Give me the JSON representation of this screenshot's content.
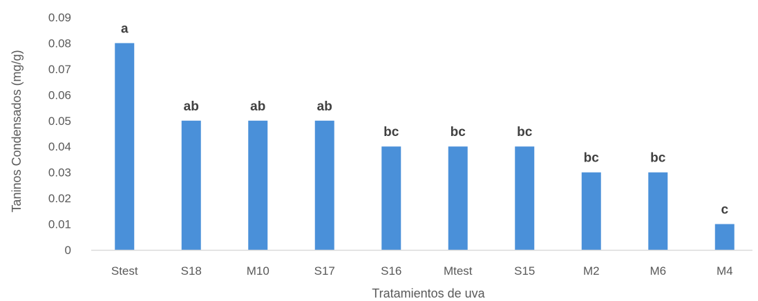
{
  "chart_data": {
    "type": "bar",
    "title": "",
    "xlabel": "Tratamientos de uva",
    "ylabel": "Taninos Condensados (mg/g)",
    "ylim": [
      0,
      0.09
    ],
    "yticks": [
      "0",
      "0.01",
      "0.02",
      "0.03",
      "0.04",
      "0.05",
      "0.06",
      "0.07",
      "0.08",
      "0.09"
    ],
    "categories": [
      "Stest",
      "S18",
      "M10",
      "S17",
      "S16",
      "Mtest",
      "S15",
      "M2",
      "M6",
      "M4"
    ],
    "values": [
      0.08,
      0.05,
      0.05,
      0.05,
      0.04,
      0.04,
      0.04,
      0.03,
      0.03,
      0.01
    ],
    "annotations": [
      "a",
      "ab",
      "ab",
      "ab",
      "bc",
      "bc",
      "bc",
      "bc",
      "bc",
      "c"
    ],
    "grid": false,
    "legend": "none",
    "bar_color": "#4A90D9",
    "axis_color": "#d9d9d9"
  }
}
